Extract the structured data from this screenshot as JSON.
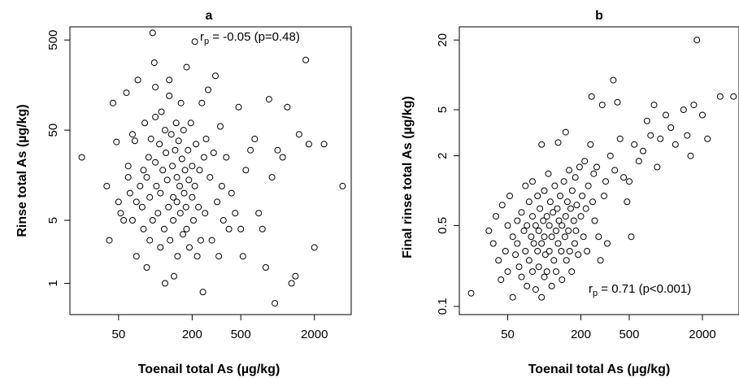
{
  "chart_data": [
    {
      "type": "scatter",
      "title": "a",
      "xlabel": "Toenail total As (µg/kg)",
      "ylabel": "Rinse total As (µg/kg)",
      "xscale": "log",
      "yscale": "log",
      "xlim": [
        20,
        4000
      ],
      "ylim": [
        0.45,
        700
      ],
      "xticks": [
        50,
        200,
        500,
        2000
      ],
      "yticks": [
        1,
        5,
        50,
        500
      ],
      "annotation": {
        "r": "r",
        "sub": "p",
        "text": " = -0.05 (p=0.48)"
      },
      "points": [
        [
          25,
          25
        ],
        [
          40,
          12
        ],
        [
          42,
          3
        ],
        [
          45,
          100
        ],
        [
          48,
          37
        ],
        [
          50,
          8
        ],
        [
          52,
          6
        ],
        [
          55,
          5
        ],
        [
          58,
          130
        ],
        [
          60,
          20
        ],
        [
          60,
          15
        ],
        [
          62,
          10
        ],
        [
          65,
          45
        ],
        [
          65,
          5
        ],
        [
          68,
          38
        ],
        [
          70,
          8
        ],
        [
          70,
          2
        ],
        [
          72,
          180
        ],
        [
          75,
          12
        ],
        [
          78,
          7
        ],
        [
          80,
          18
        ],
        [
          80,
          4
        ],
        [
          82,
          60
        ],
        [
          85,
          15
        ],
        [
          85,
          1.5
        ],
        [
          88,
          25
        ],
        [
          90,
          9
        ],
        [
          90,
          3
        ],
        [
          92,
          40
        ],
        [
          95,
          5
        ],
        [
          95,
          600
        ],
        [
          98,
          280
        ],
        [
          100,
          150
        ],
        [
          100,
          70
        ],
        [
          100,
          22
        ],
        [
          102,
          12
        ],
        [
          105,
          6
        ],
        [
          108,
          35
        ],
        [
          110,
          10
        ],
        [
          110,
          2.5
        ],
        [
          112,
          80
        ],
        [
          115,
          18
        ],
        [
          118,
          4
        ],
        [
          120,
          50
        ],
        [
          120,
          1
        ],
        [
          122,
          28
        ],
        [
          125,
          14
        ],
        [
          128,
          7
        ],
        [
          130,
          180
        ],
        [
          130,
          120
        ],
        [
          132,
          3
        ],
        [
          135,
          45
        ],
        [
          138,
          20
        ],
        [
          140,
          9
        ],
        [
          140,
          5
        ],
        [
          142,
          1.2
        ],
        [
          145,
          30
        ],
        [
          148,
          60
        ],
        [
          150,
          15
        ],
        [
          150,
          8
        ],
        [
          152,
          2
        ],
        [
          155,
          38
        ],
        [
          158,
          12
        ],
        [
          160,
          6
        ],
        [
          162,
          100
        ],
        [
          165,
          24
        ],
        [
          168,
          3.5
        ],
        [
          170,
          50
        ],
        [
          172,
          10
        ],
        [
          175,
          18
        ],
        [
          178,
          7
        ],
        [
          180,
          250
        ],
        [
          180,
          4
        ],
        [
          185,
          30
        ],
        [
          188,
          14
        ],
        [
          190,
          2.5
        ],
        [
          195,
          60
        ],
        [
          200,
          20
        ],
        [
          200,
          9
        ],
        [
          205,
          5
        ],
        [
          210,
          480
        ],
        [
          210,
          12
        ],
        [
          215,
          35
        ],
        [
          220,
          2
        ],
        [
          225,
          7
        ],
        [
          230,
          18
        ],
        [
          235,
          3
        ],
        [
          240,
          100
        ],
        [
          245,
          0.8
        ],
        [
          250,
          25
        ],
        [
          255,
          6
        ],
        [
          260,
          40
        ],
        [
          270,
          140
        ],
        [
          280,
          15
        ],
        [
          290,
          3
        ],
        [
          300,
          28
        ],
        [
          310,
          200
        ],
        [
          320,
          8
        ],
        [
          330,
          2
        ],
        [
          340,
          55
        ],
        [
          350,
          12
        ],
        [
          360,
          5
        ],
        [
          380,
          25
        ],
        [
          400,
          4
        ],
        [
          420,
          10
        ],
        [
          450,
          6
        ],
        [
          480,
          90
        ],
        [
          500,
          4
        ],
        [
          520,
          2
        ],
        [
          550,
          18
        ],
        [
          600,
          30
        ],
        [
          650,
          40
        ],
        [
          700,
          6
        ],
        [
          750,
          4
        ],
        [
          800,
          1.5
        ],
        [
          850,
          110
        ],
        [
          900,
          15
        ],
        [
          950,
          0.6
        ],
        [
          1000,
          30
        ],
        [
          1100,
          25
        ],
        [
          1200,
          90
        ],
        [
          1300,
          1
        ],
        [
          1400,
          1.2
        ],
        [
          1500,
          45
        ],
        [
          1700,
          300
        ],
        [
          1800,
          35
        ],
        [
          2000,
          2.5
        ],
        [
          2400,
          35
        ],
        [
          3400,
          12
        ]
      ]
    },
    {
      "type": "scatter",
      "title": "b",
      "xlabel": "Toenail total As (µg/kg)",
      "ylabel": "Final rinse total As (µg/kg)",
      "xscale": "log",
      "yscale": "log",
      "xlim": [
        20,
        4000
      ],
      "ylim": [
        0.085,
        26
      ],
      "xticks": [
        50,
        200,
        500,
        2000
      ],
      "yticks": [
        0.1,
        0.5,
        2,
        5,
        20
      ],
      "annotation": {
        "r": "r",
        "sub": "p",
        "text": " = 0.71 (p<0.001)"
      },
      "points": [
        [
          25,
          0.13
        ],
        [
          35,
          0.45
        ],
        [
          38,
          0.35
        ],
        [
          40,
          0.6
        ],
        [
          42,
          0.25
        ],
        [
          44,
          0.17
        ],
        [
          45,
          0.75
        ],
        [
          48,
          0.3
        ],
        [
          50,
          0.5
        ],
        [
          50,
          0.2
        ],
        [
          52,
          0.9
        ],
        [
          55,
          0.12
        ],
        [
          55,
          0.4
        ],
        [
          58,
          0.28
        ],
        [
          60,
          0.55
        ],
        [
          60,
          0.35
        ],
        [
          62,
          0.22
        ],
        [
          65,
          0.65
        ],
        [
          65,
          0.18
        ],
        [
          68,
          0.45
        ],
        [
          70,
          1.1
        ],
        [
          70,
          0.3
        ],
        [
          72,
          0.5
        ],
        [
          72,
          0.15
        ],
        [
          75,
          0.8
        ],
        [
          75,
          0.25
        ],
        [
          78,
          0.4
        ],
        [
          80,
          1.2
        ],
        [
          80,
          0.6
        ],
        [
          80,
          0.2
        ],
        [
          82,
          0.35
        ],
        [
          85,
          0.5
        ],
        [
          85,
          0.14
        ],
        [
          88,
          0.9
        ],
        [
          88,
          0.3
        ],
        [
          90,
          0.45
        ],
        [
          90,
          0.22
        ],
        [
          92,
          0.7
        ],
        [
          95,
          2.5
        ],
        [
          95,
          0.35
        ],
        [
          95,
          0.12
        ],
        [
          98,
          0.55
        ],
        [
          100,
          1.0
        ],
        [
          100,
          0.4
        ],
        [
          100,
          0.18
        ],
        [
          102,
          0.28
        ],
        [
          105,
          0.6
        ],
        [
          105,
          0.2
        ],
        [
          108,
          1.4
        ],
        [
          110,
          0.5
        ],
        [
          110,
          0.3
        ],
        [
          112,
          0.8
        ],
        [
          115,
          0.4
        ],
        [
          115,
          0.15
        ],
        [
          118,
          0.65
        ],
        [
          120,
          0.25
        ],
        [
          122,
          1.1
        ],
        [
          125,
          0.45
        ],
        [
          125,
          0.2
        ],
        [
          128,
          0.7
        ],
        [
          130,
          2.6
        ],
        [
          130,
          0.35
        ],
        [
          132,
          0.55
        ],
        [
          135,
          0.9
        ],
        [
          138,
          0.3
        ],
        [
          140,
          0.5
        ],
        [
          140,
          0.17
        ],
        [
          145,
          1.2
        ],
        [
          148,
          0.4
        ],
        [
          150,
          3.2
        ],
        [
          150,
          0.6
        ],
        [
          152,
          0.25
        ],
        [
          155,
          0.8
        ],
        [
          158,
          0.45
        ],
        [
          160,
          1.5
        ],
        [
          162,
          0.3
        ],
        [
          165,
          0.7
        ],
        [
          168,
          0.2
        ],
        [
          170,
          1.0
        ],
        [
          175,
          0.55
        ],
        [
          178,
          0.35
        ],
        [
          180,
          1.3
        ],
        [
          182,
          0.45
        ],
        [
          185,
          0.75
        ],
        [
          190,
          0.28
        ],
        [
          195,
          1.6
        ],
        [
          200,
          0.6
        ],
        [
          205,
          0.9
        ],
        [
          210,
          0.4
        ],
        [
          215,
          1.8
        ],
        [
          220,
          0.7
        ],
        [
          225,
          0.3
        ],
        [
          230,
          1.1
        ],
        [
          240,
          2.5
        ],
        [
          245,
          6.5
        ],
        [
          250,
          0.8
        ],
        [
          255,
          1.4
        ],
        [
          260,
          0.55
        ],
        [
          270,
          1.6
        ],
        [
          280,
          0.4
        ],
        [
          290,
          0.25
        ],
        [
          300,
          5.5
        ],
        [
          310,
          0.9
        ],
        [
          320,
          1.2
        ],
        [
          330,
          0.35
        ],
        [
          350,
          2.0
        ],
        [
          370,
          9
        ],
        [
          380,
          1.5
        ],
        [
          400,
          5.8
        ],
        [
          420,
          2.8
        ],
        [
          450,
          1.3
        ],
        [
          480,
          0.8
        ],
        [
          500,
          1.2
        ],
        [
          520,
          0.4
        ],
        [
          550,
          2.5
        ],
        [
          600,
          1.8
        ],
        [
          650,
          2.2
        ],
        [
          700,
          4.0
        ],
        [
          750,
          3.0
        ],
        [
          800,
          5.5
        ],
        [
          850,
          1.6
        ],
        [
          900,
          2.8
        ],
        [
          1000,
          4.5
        ],
        [
          1100,
          3.5
        ],
        [
          1200,
          2.5
        ],
        [
          1400,
          5.0
        ],
        [
          1500,
          3.0
        ],
        [
          1600,
          2.0
        ],
        [
          1700,
          5.5
        ],
        [
          1800,
          20
        ],
        [
          2000,
          4.5
        ],
        [
          2200,
          2.8
        ],
        [
          2800,
          6.5
        ],
        [
          3600,
          6.5
        ]
      ]
    }
  ]
}
